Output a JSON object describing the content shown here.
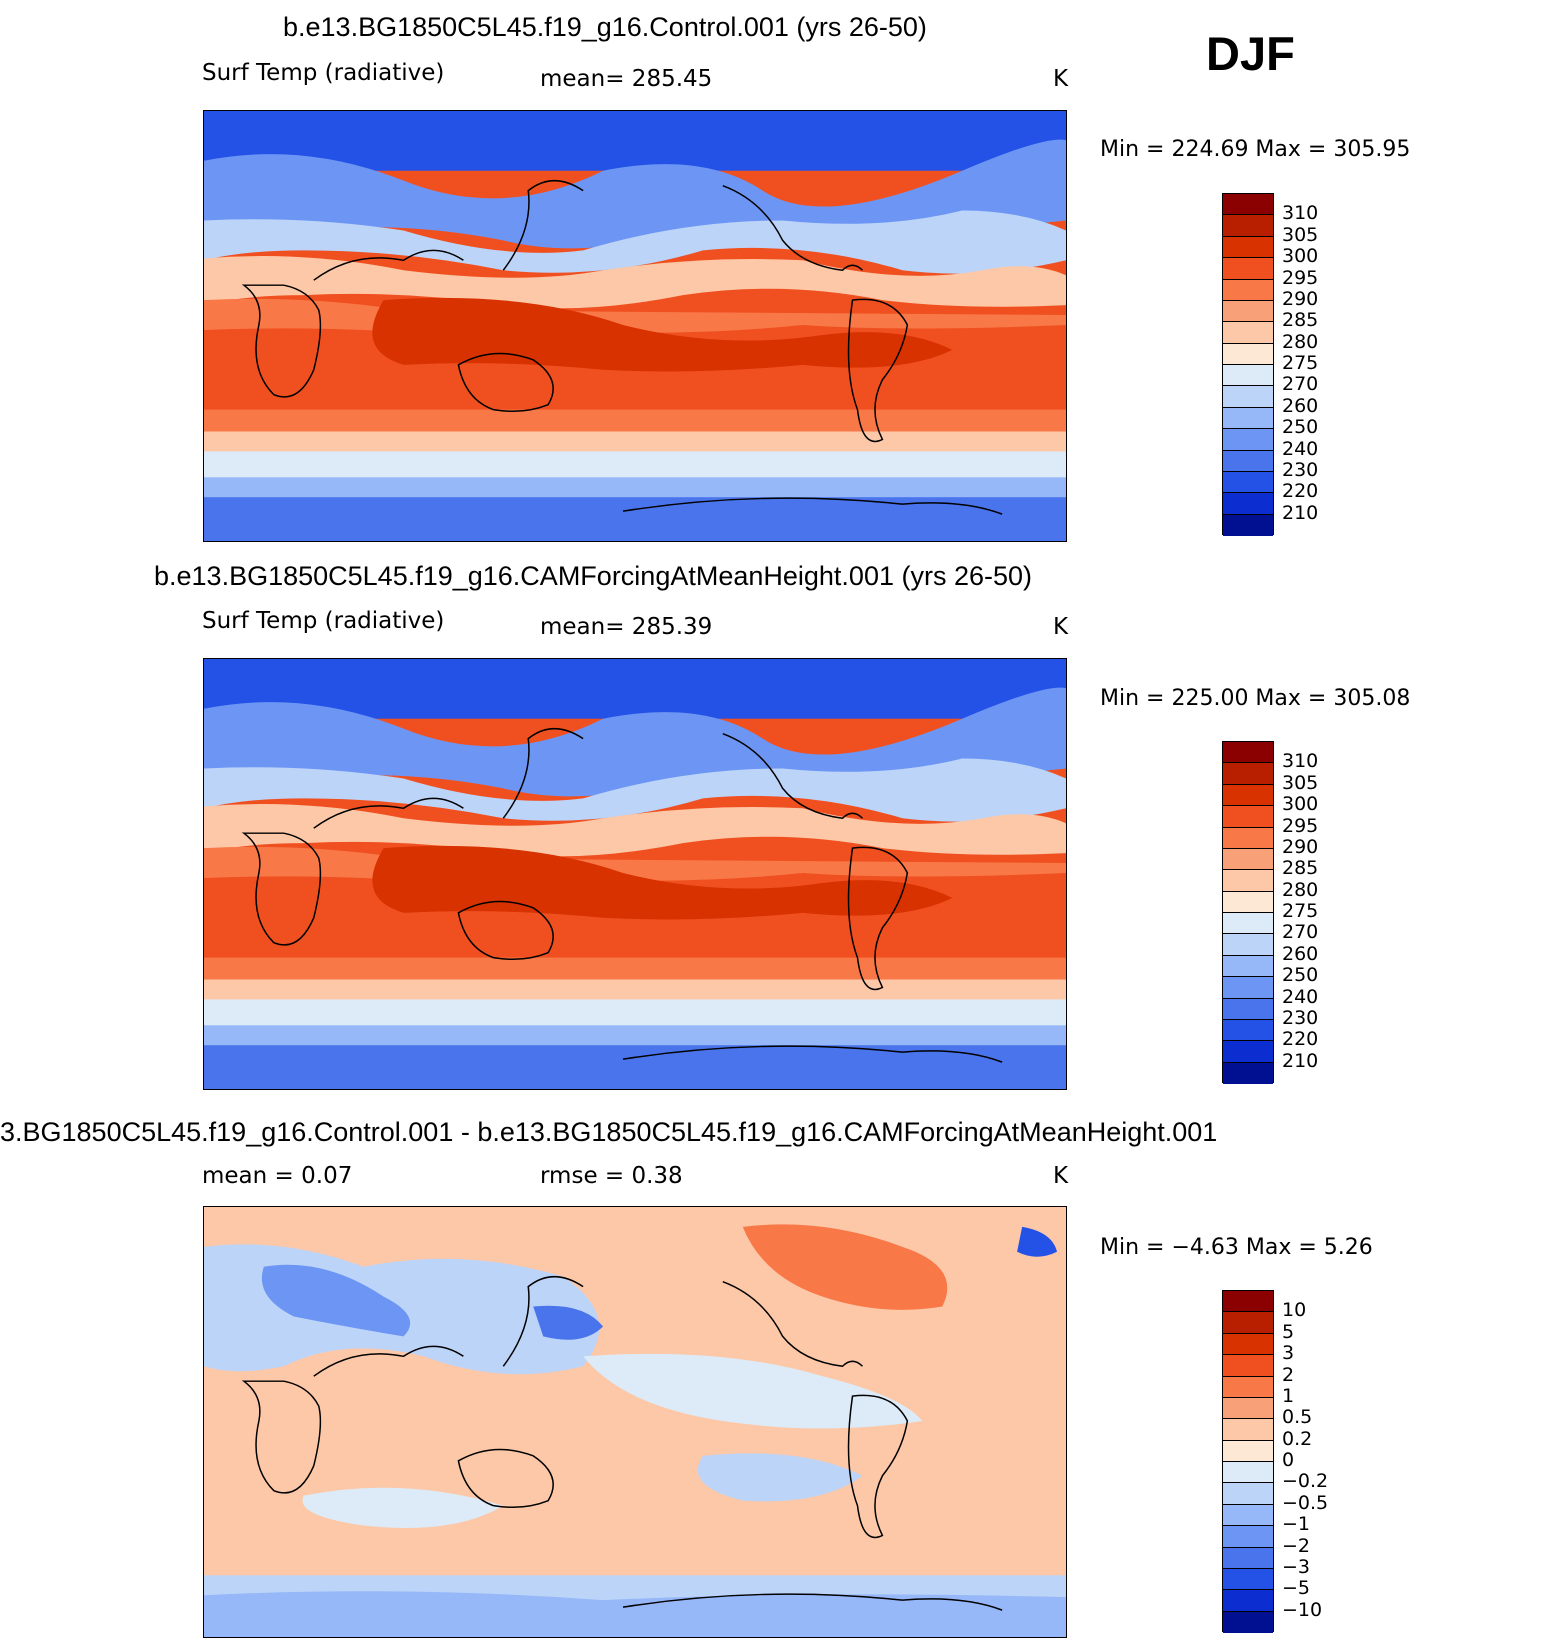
{
  "season": "DJF",
  "panels": [
    {
      "title": "b.e13.BG1850C5L45.f19_g16.Control.001 (yrs 26-50)",
      "variable": "Surf Temp (radiative)",
      "stat_text": "mean= 285.45",
      "units": "K",
      "minmax": "Min = 224.69 Max = 305.95"
    },
    {
      "title": "b.e13.BG1850C5L45.f19_g16.CAMForcingAtMeanHeight.001 (yrs 26-50)",
      "variable": "Surf Temp (radiative)",
      "stat_text": "mean= 285.39",
      "units": "K",
      "minmax": "Min = 225.00 Max = 305.08"
    },
    {
      "title": "3.BG1850C5L45.f19_g16.Control.001 - b.e13.BG1850C5L45.f19_g16.CAMForcingAtMeanHeight.001",
      "mean_text": "mean = 0.07",
      "rmse_text": "rmse = 0.38",
      "units": "K",
      "minmax": "Min = −4.63 Max = 5.26"
    }
  ],
  "abs_colorbar": {
    "labels": [
      "310",
      "305",
      "300",
      "295",
      "290",
      "285",
      "280",
      "275",
      "270",
      "260",
      "250",
      "240",
      "230",
      "220",
      "210"
    ],
    "colors": [
      "#8b0000",
      "#b81f00",
      "#d83200",
      "#f05020",
      "#f87848",
      "#f8a078",
      "#fcc8a8",
      "#fde8d6",
      "#ddebf8",
      "#bcd4f8",
      "#96b8f8",
      "#6d96f4",
      "#4a74ec",
      "#2452e6",
      "#0c2ed0",
      "#001090"
    ]
  },
  "diff_colorbar": {
    "labels": [
      "10",
      "5",
      "3",
      "2",
      "1",
      "0.5",
      "0.2",
      "0",
      "−0.2",
      "−0.5",
      "−1",
      "−2",
      "−3",
      "−5",
      "−10"
    ],
    "colors": [
      "#8b0000",
      "#b81f00",
      "#d83200",
      "#f05020",
      "#f87848",
      "#f8a078",
      "#fcc8a8",
      "#fde8d6",
      "#ddebf8",
      "#bcd4f8",
      "#96b8f8",
      "#6d96f4",
      "#4a74ec",
      "#2452e6",
      "#0c2ed0",
      "#001090"
    ]
  }
}
